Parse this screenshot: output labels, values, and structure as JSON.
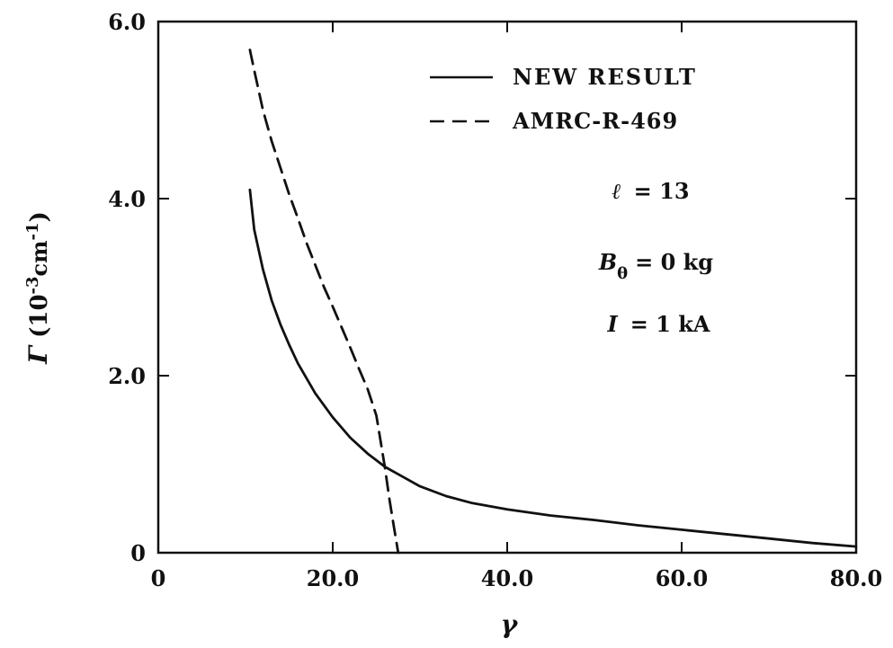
{
  "chart_data": {
    "type": "line",
    "title": "",
    "xlabel": "γ",
    "ylabel": {
      "symbol": "Γ",
      "open": " (10",
      "exp1": "-3",
      "mid": "cm",
      "exp2": "-1",
      "close": ")"
    },
    "xlim": [
      0,
      80
    ],
    "ylim": [
      0,
      6
    ],
    "x_ticks": [
      {
        "value": 0,
        "label": "0"
      },
      {
        "value": 20,
        "label": "20.0"
      },
      {
        "value": 40,
        "label": "40.0"
      },
      {
        "value": 60,
        "label": "60.0"
      },
      {
        "value": 80,
        "label": "80.0"
      }
    ],
    "y_ticks": [
      {
        "value": 0,
        "label": "0"
      },
      {
        "value": 2,
        "label": "2.0"
      },
      {
        "value": 4,
        "label": "4.0"
      },
      {
        "value": 6,
        "label": "6.0"
      }
    ],
    "grid": false,
    "legend_position": "top-right",
    "series": [
      {
        "name": "NEW RESULT",
        "style": "solid",
        "color": "#111111",
        "x": [
          10.5,
          11,
          12,
          13,
          14,
          15,
          16,
          18,
          20,
          22,
          24,
          26,
          28,
          30,
          33,
          36,
          40,
          45,
          50,
          55,
          60,
          65,
          70,
          75,
          80
        ],
        "y": [
          4.1,
          3.65,
          3.2,
          2.85,
          2.58,
          2.35,
          2.14,
          1.8,
          1.53,
          1.3,
          1.12,
          0.97,
          0.86,
          0.75,
          0.64,
          0.56,
          0.49,
          0.42,
          0.37,
          0.31,
          0.26,
          0.21,
          0.16,
          0.11,
          0.07
        ]
      },
      {
        "name": "AMRC-R-469",
        "style": "dashed",
        "color": "#111111",
        "x": [
          10.5,
          11,
          12,
          13,
          14,
          15,
          16,
          17,
          18,
          19,
          20,
          21,
          22,
          23,
          24,
          25,
          25.5,
          26,
          26.5,
          27,
          27.5
        ],
        "y": [
          5.68,
          5.45,
          5.0,
          4.65,
          4.35,
          4.05,
          3.78,
          3.5,
          3.25,
          3.0,
          2.78,
          2.55,
          2.32,
          2.08,
          1.85,
          1.55,
          1.25,
          0.95,
          0.6,
          0.3,
          0.0
        ]
      }
    ],
    "annotations": [
      {
        "key": "l",
        "sym": "ℓ",
        "sub": "",
        "rest": "= 13",
        "x": 52,
        "y": 4.0
      },
      {
        "key": "b",
        "sym": "B",
        "sub": "θ",
        "rest": "= 0 kg",
        "x": 50.5,
        "y": 3.2
      },
      {
        "key": "i",
        "sym": "I",
        "sub": "",
        "rest": "= 1 kA",
        "x": 51.5,
        "y": 2.5
      }
    ]
  }
}
